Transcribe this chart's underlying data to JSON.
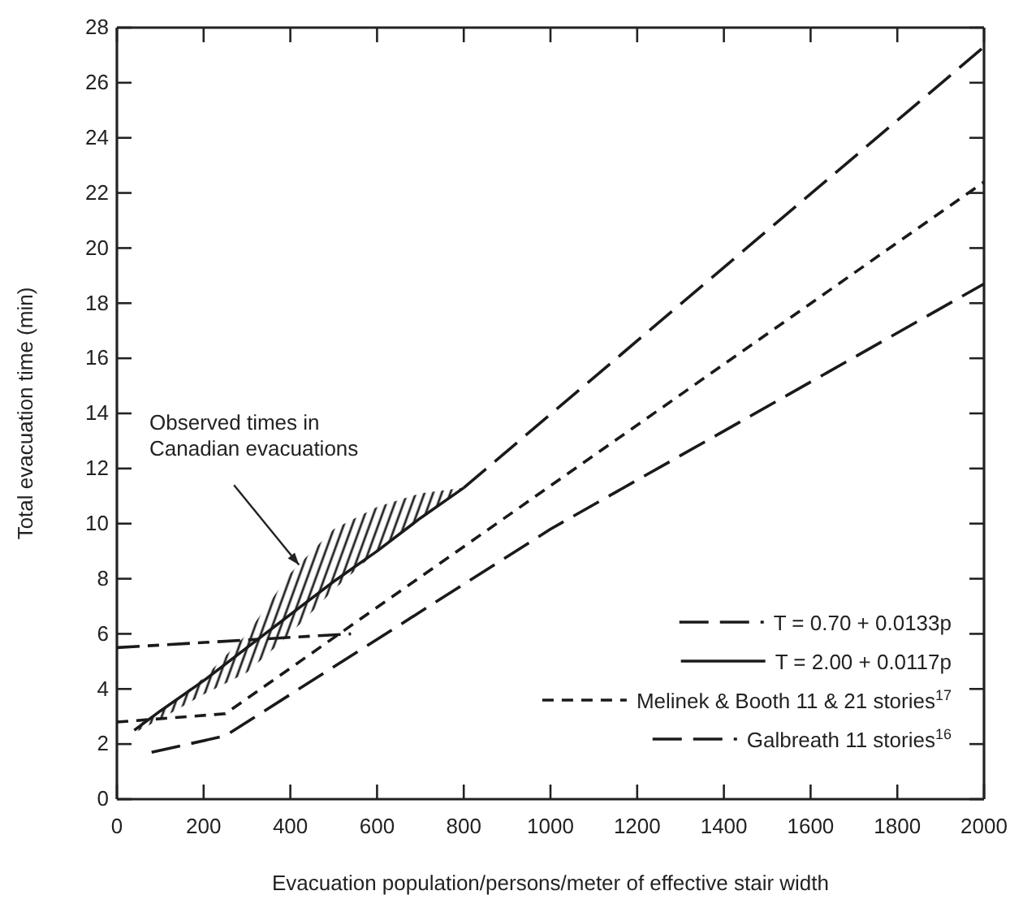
{
  "chart_data": {
    "type": "line",
    "xlabel": "Evacuation population/persons/meter of effective stair width",
    "ylabel": "Total evacuation time (min)",
    "xlim": [
      0,
      2000
    ],
    "xticks": [
      0,
      200,
      400,
      600,
      800,
      1000,
      1200,
      1400,
      1600,
      1800,
      2000
    ],
    "ylim": [
      0,
      28
    ],
    "yticks": [
      0,
      2,
      4,
      6,
      8,
      10,
      12,
      14,
      16,
      18,
      20,
      22,
      24,
      26,
      28
    ],
    "grid": false,
    "legend": "bottom right",
    "marker": "none",
    "annotations": [
      {
        "text": "Observed times in Canadian evacuations",
        "x": 420,
        "y": 8.5
      }
    ],
    "series": [
      {
        "name": "T = 0.70 + 0.0133p",
        "color": "#1a1a1a",
        "line_style": "dashed",
        "x": [
          800,
          2000
        ],
        "values": [
          11.3,
          27.3
        ]
      },
      {
        "name": "T = 2.00 + 0.0117p",
        "color": "#1a1a1a",
        "line_style": "solid",
        "x": [
          40,
          100,
          200,
          300,
          400,
          500,
          600,
          700,
          800
        ],
        "values": [
          2.5,
          3.2,
          4.3,
          5.5,
          6.7,
          7.9,
          9.0,
          10.2,
          11.3
        ],
        "lower": [
          2.4,
          2.9,
          3.8,
          4.6,
          6.0,
          7.6,
          9.0,
          10.2,
          11.3
        ],
        "upper": [
          2.6,
          3.2,
          4.4,
          6.0,
          8.2,
          9.8,
          10.6,
          11.1,
          11.3
        ]
      },
      {
        "name": "Melinek & Booth 11 & 21 stories$^{17}$",
        "color": "#1a1a1a",
        "line_style": "dashed",
        "x": [
          0,
          250,
          2000
        ],
        "values": [
          2.8,
          3.1,
          22.4
        ]
      },
      {
        "color": "#1a1a1a",
        "line_style": "dashed",
        "x": [
          0,
          540
        ],
        "values": [
          5.5,
          6.0
        ]
      },
      {
        "name": "Galbreath 11 stories$^{16}$",
        "color": "#1a1a1a",
        "line_style": "dashed",
        "x": [
          80,
          250,
          300,
          1000,
          2000
        ],
        "values": [
          1.7,
          2.3,
          2.8,
          9.8,
          18.7
        ]
      }
    ]
  }
}
